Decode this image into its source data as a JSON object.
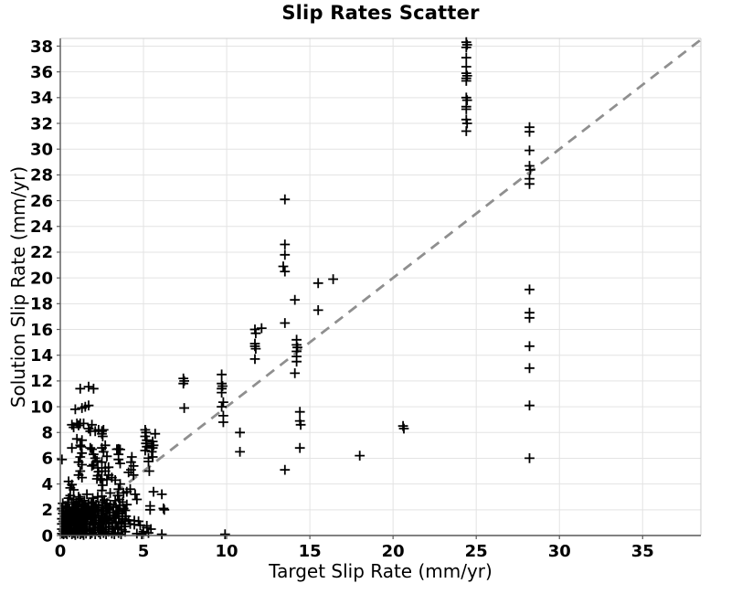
{
  "chart_data": {
    "type": "scatter",
    "title": "Slip Rates Scatter",
    "xlabel": "Target Slip Rate (mm/yr)",
    "ylabel": "Solution Slip Rate (mm/yr)",
    "xlim": [
      0,
      38.5
    ],
    "ylim": [
      0,
      38.6
    ],
    "x_ticks": [
      0,
      5,
      10,
      15,
      20,
      25,
      30,
      35
    ],
    "y_ticks": [
      0,
      2,
      4,
      6,
      8,
      10,
      12,
      14,
      16,
      18,
      20,
      22,
      24,
      26,
      28,
      30,
      32,
      34,
      36,
      38
    ],
    "grid": true,
    "legend": "none",
    "marker": "plus",
    "identity_line": {
      "from": [
        0,
        0
      ],
      "to": [
        38.5,
        38.5
      ],
      "style": "dashed"
    },
    "colors": {
      "marker": "#000000",
      "identity": "#8f8f8f",
      "grid": "#e3e3e3",
      "spine_dark": "#595959",
      "spine_light": "#cccccc",
      "tick_text": "#000000"
    },
    "points": [
      [
        24.4,
        38.3
      ],
      [
        24.45,
        38.1
      ],
      [
        24.4,
        37.9
      ],
      [
        24.4,
        37.1
      ],
      [
        24.4,
        36.4
      ],
      [
        24.4,
        35.9
      ],
      [
        24.45,
        35.7
      ],
      [
        24.4,
        35.5
      ],
      [
        24.4,
        35.3
      ],
      [
        24.4,
        34.0
      ],
      [
        24.45,
        33.8
      ],
      [
        24.4,
        33.3
      ],
      [
        24.4,
        33.1
      ],
      [
        24.4,
        32.3
      ],
      [
        24.45,
        32.0
      ],
      [
        24.4,
        31.4
      ],
      [
        28.2,
        31.7
      ],
      [
        28.2,
        31.35
      ],
      [
        28.2,
        29.9
      ],
      [
        28.2,
        28.7
      ],
      [
        28.25,
        28.4
      ],
      [
        28.2,
        27.7
      ],
      [
        28.2,
        27.3
      ],
      [
        28.2,
        19.1
      ],
      [
        28.2,
        17.3
      ],
      [
        28.2,
        16.9
      ],
      [
        28.2,
        14.7
      ],
      [
        28.2,
        13.0
      ],
      [
        28.2,
        10.1
      ],
      [
        28.2,
        6.0
      ],
      [
        13.5,
        26.1
      ],
      [
        13.5,
        22.6
      ],
      [
        13.5,
        21.8
      ],
      [
        13.4,
        20.9
      ],
      [
        13.5,
        20.5
      ],
      [
        13.5,
        16.5
      ],
      [
        13.5,
        5.1
      ],
      [
        16.4,
        19.9
      ],
      [
        15.5,
        19.6
      ],
      [
        15.5,
        17.5
      ],
      [
        14.1,
        18.3
      ],
      [
        14.2,
        15.2
      ],
      [
        14.2,
        14.8
      ],
      [
        14.25,
        14.6
      ],
      [
        14.2,
        14.3
      ],
      [
        14.2,
        13.9
      ],
      [
        14.2,
        13.5
      ],
      [
        14.1,
        12.6
      ],
      [
        14.4,
        9.6
      ],
      [
        14.4,
        8.9
      ],
      [
        14.45,
        8.6
      ],
      [
        14.4,
        6.8
      ],
      [
        11.7,
        16.0
      ],
      [
        11.75,
        15.7
      ],
      [
        12.1,
        16.1
      ],
      [
        11.7,
        14.9
      ],
      [
        11.7,
        14.7
      ],
      [
        11.75,
        14.5
      ],
      [
        11.7,
        13.7
      ],
      [
        9.7,
        12.5
      ],
      [
        9.7,
        11.8
      ],
      [
        9.75,
        11.6
      ],
      [
        9.7,
        11.4
      ],
      [
        9.7,
        11.1
      ],
      [
        9.8,
        10.35
      ],
      [
        9.7,
        10.0
      ],
      [
        9.8,
        9.3
      ],
      [
        9.8,
        8.8
      ],
      [
        10.8,
        8.0
      ],
      [
        10.8,
        6.5
      ],
      [
        9.9,
        0.1
      ],
      [
        18.0,
        6.2
      ],
      [
        20.6,
        8.5
      ],
      [
        20.65,
        8.3
      ],
      [
        7.4,
        12.2
      ],
      [
        7.45,
        12.0
      ],
      [
        7.4,
        11.8
      ],
      [
        7.45,
        9.9
      ],
      [
        1.2,
        11.4
      ],
      [
        1.7,
        11.55
      ],
      [
        2.0,
        11.4
      ],
      [
        0.9,
        9.8
      ],
      [
        1.3,
        9.9
      ],
      [
        1.5,
        10.0
      ],
      [
        1.7,
        10.1
      ],
      [
        0.7,
        8.6
      ],
      [
        0.8,
        8.4
      ],
      [
        1.0,
        8.7
      ],
      [
        1.2,
        8.7
      ],
      [
        1.4,
        8.7
      ],
      [
        1.1,
        8.55
      ],
      [
        1.7,
        8.3
      ],
      [
        1.9,
        8.6
      ],
      [
        1.8,
        8.1
      ],
      [
        2.1,
        8.1
      ],
      [
        2.3,
        8.2
      ],
      [
        2.5,
        8.1
      ],
      [
        2.6,
        8.2
      ],
      [
        1.0,
        7.5
      ],
      [
        1.3,
        7.4
      ],
      [
        0.7,
        6.8
      ],
      [
        1.2,
        7.0
      ],
      [
        1.25,
        6.9
      ],
      [
        1.8,
        6.8
      ],
      [
        2.5,
        7.9
      ],
      [
        2.55,
        7.7
      ],
      [
        2.7,
        7.0
      ],
      [
        2.5,
        6.8
      ],
      [
        2.6,
        6.5
      ],
      [
        2.8,
        6.15
      ],
      [
        3.4,
        6.7
      ],
      [
        3.5,
        6.72
      ],
      [
        3.6,
        6.68
      ],
      [
        3.5,
        6.3
      ],
      [
        3.5,
        5.9
      ],
      [
        3.6,
        5.6
      ],
      [
        4.3,
        6.1
      ],
      [
        4.25,
        5.7
      ],
      [
        4.4,
        5.4
      ],
      [
        4.25,
        5.1
      ],
      [
        4.1,
        4.9
      ],
      [
        4.4,
        4.7
      ],
      [
        1.3,
        6.4
      ],
      [
        1.2,
        6.1
      ],
      [
        1.1,
        5.7
      ],
      [
        1.3,
        5.5
      ],
      [
        1.2,
        5.0
      ],
      [
        1.1,
        4.7
      ],
      [
        1.3,
        4.5
      ],
      [
        1.9,
        6.7
      ],
      [
        2.0,
        6.3
      ],
      [
        2.1,
        6.0
      ],
      [
        2.2,
        5.8
      ],
      [
        2.0,
        5.5
      ],
      [
        1.9,
        5.4
      ],
      [
        0.1,
        5.9
      ],
      [
        2.5,
        5.7
      ],
      [
        2.7,
        5.25
      ],
      [
        2.5,
        5.0
      ],
      [
        2.9,
        5.3
      ],
      [
        2.7,
        5.0
      ],
      [
        2.9,
        4.7
      ],
      [
        2.25,
        5.25
      ],
      [
        2.3,
        4.95
      ],
      [
        2.25,
        4.65
      ],
      [
        2.4,
        4.4
      ],
      [
        0.5,
        4.2
      ],
      [
        0.7,
        3.95
      ],
      [
        0.6,
        3.7
      ],
      [
        0.8,
        3.55
      ],
      [
        2.2,
        4.4
      ],
      [
        2.5,
        4.3
      ],
      [
        2.55,
        3.9
      ],
      [
        2.5,
        3.5
      ],
      [
        5.1,
        8.2
      ],
      [
        5.15,
        8.0
      ],
      [
        5.1,
        7.7
      ],
      [
        5.2,
        7.4
      ],
      [
        5.15,
        7.15
      ],
      [
        5.2,
        6.9
      ],
      [
        5.1,
        6.6
      ],
      [
        5.7,
        7.9
      ],
      [
        5.6,
        7.0
      ],
      [
        5.55,
        7.3
      ],
      [
        5.5,
        7.0
      ],
      [
        5.55,
        6.8
      ],
      [
        5.5,
        6.5
      ],
      [
        5.55,
        6.1
      ],
      [
        5.3,
        6.0
      ],
      [
        5.3,
        5.75
      ],
      [
        5.35,
        5.0
      ],
      [
        5.6,
        3.4
      ],
      [
        6.1,
        3.2
      ],
      [
        5.4,
        2.3
      ],
      [
        5.4,
        2.0
      ],
      [
        6.2,
        2.1
      ],
      [
        6.25,
        2.0
      ],
      [
        3.1,
        4.5
      ],
      [
        3.3,
        4.3
      ],
      [
        2.8,
        4.35
      ],
      [
        3.6,
        4.0
      ],
      [
        4.2,
        3.6
      ],
      [
        4.5,
        3.2
      ],
      [
        4.6,
        2.8
      ],
      [
        3.5,
        3.6
      ],
      [
        3.8,
        3.3
      ],
      [
        4.0,
        3.4
      ],
      [
        4.1,
        1.2
      ],
      [
        4.45,
        1.15
      ],
      [
        4.7,
        1.1
      ],
      [
        4.2,
        0.9
      ],
      [
        4.45,
        0.85
      ],
      [
        4.8,
        0.8
      ],
      [
        5.2,
        0.75
      ],
      [
        5.2,
        0.6
      ],
      [
        5.45,
        0.5
      ],
      [
        5.0,
        0.3
      ],
      [
        5.3,
        0.2
      ],
      [
        4.6,
        0.15
      ],
      [
        4.9,
        0.1
      ],
      [
        6.1,
        0.1
      ],
      [
        0.1,
        0.15
      ],
      [
        0.1,
        0.5
      ],
      [
        0.1,
        0.9
      ],
      [
        0.1,
        1.3
      ],
      [
        0.15,
        1.7
      ],
      [
        0.1,
        2.1
      ],
      [
        0.15,
        2.5
      ],
      [
        0.2,
        0.1
      ],
      [
        0.2,
        0.35
      ],
      [
        0.25,
        0.7
      ],
      [
        0.2,
        1.1
      ],
      [
        0.25,
        1.5
      ],
      [
        0.2,
        1.9
      ],
      [
        0.3,
        2.3
      ],
      [
        0.3,
        0.2
      ],
      [
        0.35,
        0.55
      ],
      [
        0.3,
        0.95
      ],
      [
        0.35,
        1.35
      ],
      [
        0.4,
        1.75
      ],
      [
        0.35,
        2.15
      ],
      [
        0.45,
        2.6
      ],
      [
        0.4,
        0.1
      ],
      [
        0.45,
        0.4
      ],
      [
        0.5,
        0.8
      ],
      [
        0.45,
        1.2
      ],
      [
        0.5,
        1.6
      ],
      [
        0.55,
        2.0
      ],
      [
        0.5,
        2.9
      ],
      [
        0.55,
        0.25
      ],
      [
        0.6,
        0.6
      ],
      [
        0.55,
        1.0
      ],
      [
        0.6,
        1.45
      ],
      [
        0.6,
        1.85
      ],
      [
        0.6,
        3.1
      ],
      [
        0.7,
        0.1
      ],
      [
        0.65,
        0.45
      ],
      [
        0.7,
        0.85
      ],
      [
        0.75,
        1.25
      ],
      [
        0.7,
        1.65
      ],
      [
        0.75,
        2.05
      ],
      [
        0.7,
        2.45
      ],
      [
        0.8,
        2.8
      ],
      [
        0.8,
        0.2
      ],
      [
        0.85,
        0.55
      ],
      [
        0.8,
        0.95
      ],
      [
        0.85,
        1.4
      ],
      [
        0.9,
        1.8
      ],
      [
        0.85,
        2.2
      ],
      [
        0.95,
        2.55
      ],
      [
        0.9,
        0.05
      ],
      [
        0.95,
        0.35
      ],
      [
        1.0,
        0.75
      ],
      [
        0.95,
        1.15
      ],
      [
        1.0,
        1.55
      ],
      [
        1.05,
        1.95
      ],
      [
        1.0,
        2.35
      ],
      [
        1.1,
        3.0
      ],
      [
        1.05,
        0.15
      ],
      [
        1.1,
        0.5
      ],
      [
        1.05,
        0.9
      ],
      [
        1.1,
        1.3
      ],
      [
        1.1,
        1.7
      ],
      [
        1.05,
        2.1
      ],
      [
        1.1,
        2.65
      ],
      [
        1.2,
        0.1
      ],
      [
        1.15,
        0.4
      ],
      [
        1.2,
        0.8
      ],
      [
        1.25,
        1.2
      ],
      [
        1.2,
        1.6
      ],
      [
        1.25,
        2.0
      ],
      [
        1.3,
        2.4
      ],
      [
        1.2,
        2.85
      ],
      [
        1.3,
        0.2
      ],
      [
        1.35,
        0.6
      ],
      [
        1.3,
        1.0
      ],
      [
        1.35,
        1.45
      ],
      [
        1.4,
        1.85
      ],
      [
        1.35,
        2.25
      ],
      [
        1.45,
        2.7
      ],
      [
        1.4,
        0.05
      ],
      [
        1.45,
        0.35
      ],
      [
        1.5,
        0.7
      ],
      [
        1.45,
        1.1
      ],
      [
        1.5,
        1.5
      ],
      [
        1.55,
        1.9
      ],
      [
        1.5,
        2.3
      ],
      [
        1.6,
        3.2
      ],
      [
        1.55,
        0.15
      ],
      [
        1.6,
        0.5
      ],
      [
        1.6,
        0.9
      ],
      [
        1.65,
        1.35
      ],
      [
        1.7,
        1.75
      ],
      [
        1.65,
        2.15
      ],
      [
        1.7,
        2.55
      ],
      [
        1.8,
        0.1
      ],
      [
        1.75,
        0.45
      ],
      [
        1.8,
        0.85
      ],
      [
        1.85,
        1.25
      ],
      [
        1.8,
        1.7
      ],
      [
        1.9,
        2.1
      ],
      [
        1.85,
        2.5
      ],
      [
        1.95,
        2.9
      ],
      [
        1.9,
        0.2
      ],
      [
        1.95,
        0.6
      ],
      [
        2.0,
        1.0
      ],
      [
        1.95,
        1.4
      ],
      [
        2.0,
        1.8
      ],
      [
        2.05,
        2.2
      ],
      [
        2.0,
        2.6
      ],
      [
        2.1,
        0.1
      ],
      [
        2.05,
        0.4
      ],
      [
        2.1,
        0.8
      ],
      [
        2.15,
        1.2
      ],
      [
        2.1,
        1.6
      ],
      [
        2.2,
        2.0
      ],
      [
        2.15,
        2.4
      ],
      [
        2.25,
        3.0
      ],
      [
        2.3,
        0.25
      ],
      [
        2.25,
        0.65
      ],
      [
        2.3,
        1.05
      ],
      [
        2.3,
        1.5
      ],
      [
        2.25,
        1.9
      ],
      [
        2.3,
        2.3
      ],
      [
        2.4,
        0.1
      ],
      [
        2.45,
        0.5
      ],
      [
        2.4,
        0.95
      ],
      [
        2.5,
        1.35
      ],
      [
        2.45,
        1.75
      ],
      [
        2.5,
        2.15
      ],
      [
        2.55,
        2.6
      ],
      [
        2.5,
        3.05
      ],
      [
        2.6,
        0.2
      ],
      [
        2.55,
        0.6
      ],
      [
        2.6,
        1.05
      ],
      [
        2.65,
        1.45
      ],
      [
        2.6,
        1.9
      ],
      [
        2.7,
        2.3
      ],
      [
        2.65,
        2.75
      ],
      [
        2.75,
        0.1
      ],
      [
        2.7,
        0.45
      ],
      [
        2.75,
        0.9
      ],
      [
        2.8,
        1.3
      ],
      [
        2.75,
        1.7
      ],
      [
        2.85,
        2.1
      ],
      [
        2.8,
        2.5
      ],
      [
        2.9,
        0.3
      ],
      [
        2.95,
        0.7
      ],
      [
        2.9,
        1.15
      ],
      [
        3.0,
        1.55
      ],
      [
        2.95,
        2.0
      ],
      [
        3.0,
        2.4
      ],
      [
        3.0,
        3.3
      ],
      [
        3.1,
        0.15
      ],
      [
        3.15,
        0.55
      ],
      [
        3.1,
        1.0
      ],
      [
        3.2,
        1.4
      ],
      [
        3.15,
        1.8
      ],
      [
        3.2,
        2.25
      ],
      [
        3.3,
        2.7
      ],
      [
        3.25,
        0.1
      ],
      [
        3.3,
        0.5
      ],
      [
        3.35,
        0.95
      ],
      [
        3.3,
        1.35
      ],
      [
        3.4,
        1.75
      ],
      [
        3.35,
        2.2
      ],
      [
        3.45,
        3.1
      ],
      [
        3.5,
        0.2
      ],
      [
        3.45,
        0.6
      ],
      [
        3.5,
        1.05
      ],
      [
        3.55,
        1.5
      ],
      [
        3.5,
        1.9
      ],
      [
        3.6,
        2.35
      ],
      [
        3.55,
        2.8
      ],
      [
        3.65,
        0.1
      ],
      [
        3.7,
        0.45
      ],
      [
        3.65,
        0.9
      ],
      [
        3.75,
        1.3
      ],
      [
        3.7,
        1.7
      ],
      [
        3.8,
        2.1
      ],
      [
        3.75,
        2.6
      ],
      [
        3.9,
        0.3
      ],
      [
        3.85,
        0.7
      ],
      [
        3.9,
        1.1
      ],
      [
        3.95,
        1.5
      ],
      [
        3.9,
        1.95
      ],
      [
        4.0,
        2.4
      ]
    ]
  }
}
